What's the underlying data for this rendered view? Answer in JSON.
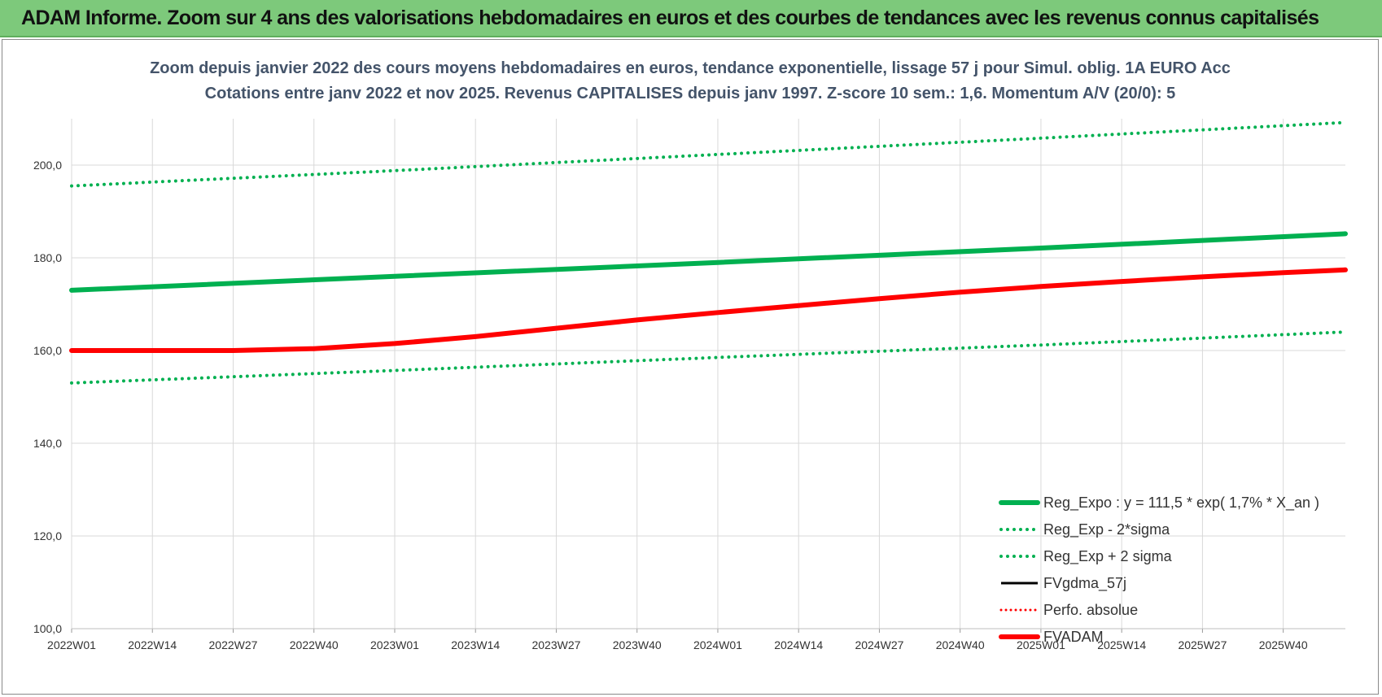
{
  "banner": {
    "title": "ADAM Informe. Zoom sur 4 ans des valorisations hebdomadaires en euros et des courbes de tendances avec les revenus connus capitalisés"
  },
  "colors": {
    "green": "#00b050",
    "red": "#ff0000",
    "black": "#000000",
    "banner": "#7dc97b",
    "title_text": "#44546a",
    "grid": "#d9d9d9"
  },
  "chart_data": {
    "type": "line",
    "title": "Zoom depuis janvier 2022 des cours moyens hebdomadaires en euros, tendance exponentielle, lissage 57 j pour Simul. oblig. 1A EURO Acc",
    "subtitle": "Cotations entre janv 2022 et nov 2025. Revenus CAPITALISES depuis janv 1997. Z-score 10 sem.: 1,6. Momentum A/V (20/0): 5",
    "ylim": [
      100,
      210
    ],
    "yticks": [
      100,
      120,
      140,
      160,
      180,
      200
    ],
    "ytick_labels": [
      "100,0",
      "120,0",
      "140,0",
      "160,0",
      "180,0",
      "200,0"
    ],
    "x_start_week_index": 0,
    "x_end_week_index": 205,
    "xtick_labels": [
      "2022W01",
      "2022W14",
      "2022W27",
      "2022W40",
      "2023W01",
      "2023W14",
      "2023W27",
      "2023W40",
      "2024W01",
      "2024W14",
      "2024W27",
      "2024W40",
      "2025W01",
      "2025W14",
      "2025W27",
      "2025W40"
    ],
    "xtick_step_weeks": 13,
    "legend_position": "bottom-right",
    "series": [
      {
        "name": "Reg_Expo : y = 111,5 * exp( 1,7% *  X_an )",
        "style": "solid-thick",
        "color": "#00b050",
        "points": [
          [
            0,
            173.0
          ],
          [
            52,
            176.0
          ],
          [
            104,
            179.0
          ],
          [
            156,
            182.1
          ],
          [
            205,
            185.2
          ]
        ]
      },
      {
        "name": "Reg_Exp - 2*sigma",
        "style": "dotted",
        "color": "#00b050",
        "points": [
          [
            0,
            153.0
          ],
          [
            52,
            155.7
          ],
          [
            104,
            158.5
          ],
          [
            156,
            161.2
          ],
          [
            205,
            164.0
          ]
        ]
      },
      {
        "name": "Reg_Exp + 2 sigma",
        "style": "dotted",
        "color": "#00b050",
        "points": [
          [
            0,
            195.5
          ],
          [
            52,
            198.8
          ],
          [
            104,
            202.3
          ],
          [
            156,
            205.8
          ],
          [
            205,
            209.2
          ]
        ]
      },
      {
        "name": "FVgdma_57j",
        "style": "solid",
        "color": "#000000",
        "points": []
      },
      {
        "name": "Perfo. absolue",
        "style": "dotted",
        "color": "#ff0000",
        "points": []
      },
      {
        "name": "FVADAM",
        "style": "solid-thick",
        "color": "#ff0000",
        "points": [
          [
            0,
            160.0
          ],
          [
            13,
            160.0
          ],
          [
            26,
            160.0
          ],
          [
            39,
            160.4
          ],
          [
            52,
            161.5
          ],
          [
            65,
            163.0
          ],
          [
            78,
            164.8
          ],
          [
            91,
            166.6
          ],
          [
            104,
            168.2
          ],
          [
            117,
            169.7
          ],
          [
            130,
            171.2
          ],
          [
            143,
            172.6
          ],
          [
            156,
            173.8
          ],
          [
            169,
            174.9
          ],
          [
            182,
            175.9
          ],
          [
            195,
            176.8
          ],
          [
            205,
            177.4
          ]
        ]
      }
    ]
  }
}
